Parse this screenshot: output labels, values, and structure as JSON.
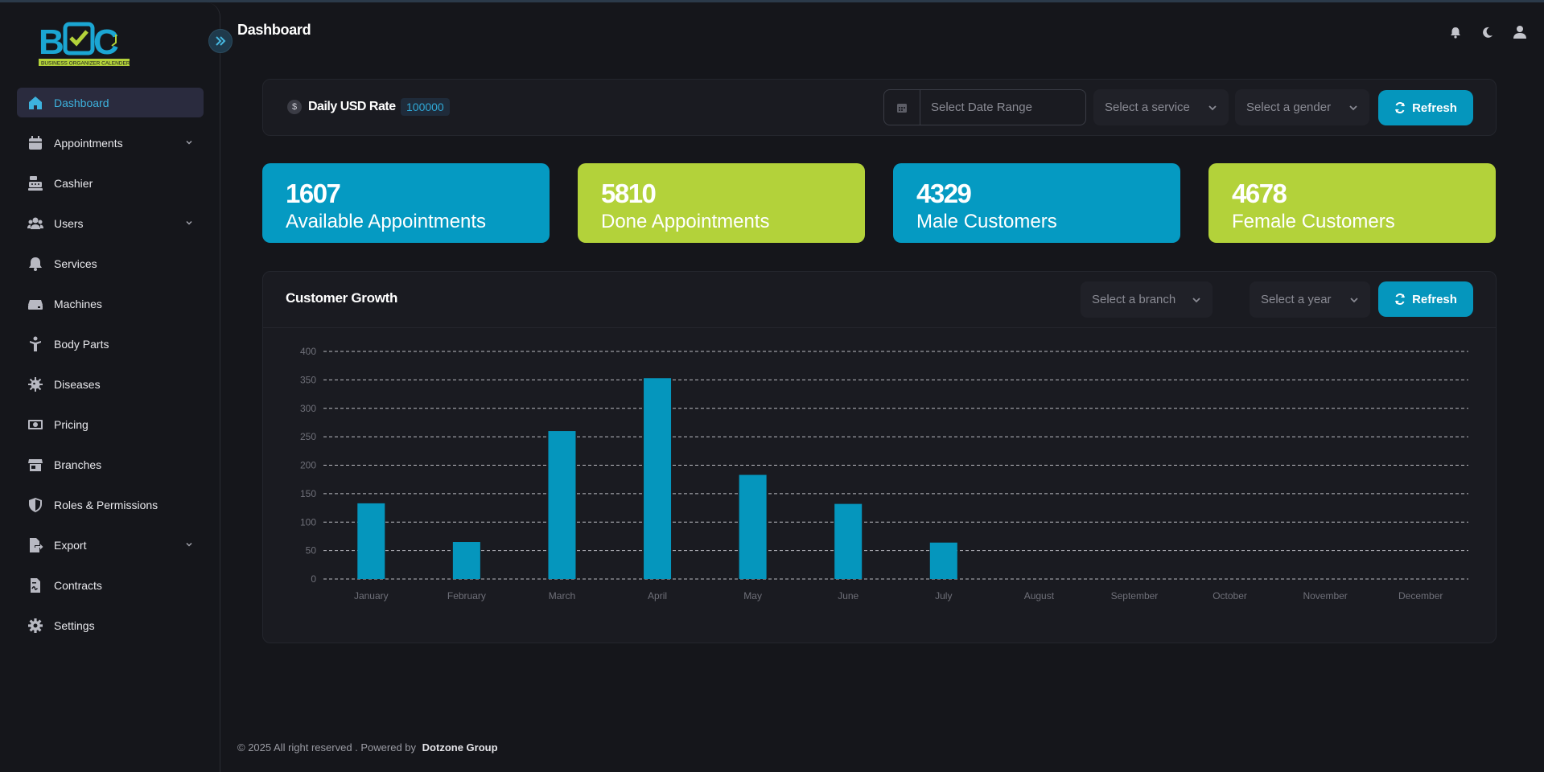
{
  "app": {
    "logo_text": "BOC",
    "logo_subtitle": "BUSINESS ORGANIZER CALENDER"
  },
  "sidebar": {
    "items": [
      {
        "label": "Dashboard",
        "icon": "home-icon",
        "active": true,
        "expandable": false
      },
      {
        "label": "Appointments",
        "icon": "calendar-icon",
        "active": false,
        "expandable": true
      },
      {
        "label": "Cashier",
        "icon": "cash-register-icon",
        "active": false,
        "expandable": false
      },
      {
        "label": "Users",
        "icon": "users-icon",
        "active": false,
        "expandable": true
      },
      {
        "label": "Services",
        "icon": "bell-icon",
        "active": false,
        "expandable": false
      },
      {
        "label": "Machines",
        "icon": "machine-icon",
        "active": false,
        "expandable": false
      },
      {
        "label": "Body Parts",
        "icon": "body-icon",
        "active": false,
        "expandable": false
      },
      {
        "label": "Diseases",
        "icon": "virus-icon",
        "active": false,
        "expandable": false
      },
      {
        "label": "Pricing",
        "icon": "money-icon",
        "active": false,
        "expandable": false
      },
      {
        "label": "Branches",
        "icon": "store-icon",
        "active": false,
        "expandable": false
      },
      {
        "label": "Roles & Permissions",
        "icon": "shield-icon",
        "active": false,
        "expandable": false
      },
      {
        "label": "Export",
        "icon": "file-export-icon",
        "active": false,
        "expandable": true
      },
      {
        "label": "Contracts",
        "icon": "contract-icon",
        "active": false,
        "expandable": false
      },
      {
        "label": "Settings",
        "icon": "gear-icon",
        "active": false,
        "expandable": false
      }
    ]
  },
  "header": {
    "title": "Dashboard",
    "icons": [
      "bell-icon",
      "moon-icon",
      "user-icon"
    ]
  },
  "filters": {
    "usd_icon_text": "$",
    "usd_label": "Daily USD Rate",
    "usd_value": "100000",
    "date_range_placeholder": "Select Date Range",
    "service_placeholder": "Select a service",
    "gender_placeholder": "Select a gender",
    "refresh_label": "Refresh"
  },
  "stats": [
    {
      "value": "1607",
      "label": "Available Appointments",
      "color": "#059ac2"
    },
    {
      "value": "5810",
      "label": "Done Appointments",
      "color": "#b3d23a"
    },
    {
      "value": "4329",
      "label": "Male Customers",
      "color": "#059ac2"
    },
    {
      "value": "4678",
      "label": "Female Customers",
      "color": "#b3d23a"
    }
  ],
  "chart_panel": {
    "title": "Customer Growth",
    "branch_placeholder": "Select a branch",
    "year_placeholder": "Select a year",
    "refresh_label": "Refresh"
  },
  "chart_data": {
    "type": "bar",
    "title": "Customer Growth",
    "xlabel": "",
    "ylabel": "",
    "categories": [
      "January",
      "February",
      "March",
      "April",
      "May",
      "June",
      "July",
      "August",
      "September",
      "October",
      "November",
      "December"
    ],
    "values": [
      133,
      65,
      260,
      353,
      183,
      132,
      64,
      0,
      0,
      0,
      0,
      0
    ],
    "ylim": [
      0,
      400
    ],
    "yticks": [
      0,
      50,
      100,
      150,
      200,
      250,
      300,
      350,
      400
    ],
    "grid": true,
    "bar_color": "#0596bd"
  },
  "footer": {
    "text": "© 2025 All right reserved . Powered by",
    "company": "Dotzone Group"
  },
  "colors": {
    "accent": "#0596bd",
    "green": "#b3d23a",
    "bg": "#15161b",
    "panel": "#1a1b21"
  }
}
